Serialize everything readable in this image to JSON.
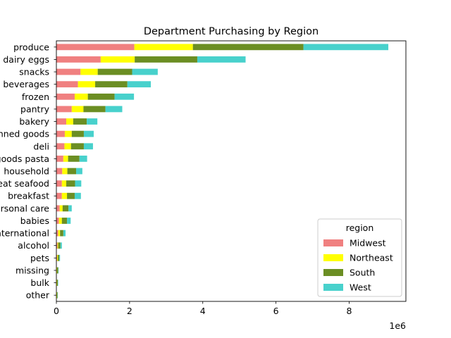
{
  "chart_data": {
    "type": "bar",
    "orientation": "horizontal",
    "stacked": true,
    "title": "Department Purchasing by Region",
    "xlabel": "",
    "ylabel": "",
    "x_scale_label": "1e6",
    "xlim": [
      0,
      9.55
    ],
    "x_ticks": [
      0,
      2,
      4,
      6,
      8
    ],
    "grid": false,
    "legend_title": "region",
    "legend_position": "lower-right",
    "categories": [
      "produce",
      "dairy eggs",
      "snacks",
      "beverages",
      "frozen",
      "pantry",
      "bakery",
      "canned goods",
      "deli",
      "dry goods pasta",
      "household",
      "meat seafood",
      "breakfast",
      "personal care",
      "babies",
      "international",
      "alcohol",
      "pets",
      "missing",
      "bulk",
      "other"
    ],
    "series": [
      {
        "name": "Midwest",
        "color": "#f08080",
        "values": [
          2.13,
          1.21,
          0.66,
          0.59,
          0.5,
          0.42,
          0.27,
          0.23,
          0.22,
          0.19,
          0.16,
          0.15,
          0.15,
          0.09,
          0.07,
          0.05,
          0.03,
          0.02,
          0.01,
          0.01,
          0.01
        ]
      },
      {
        "name": "Northeast",
        "color": "#ffff00",
        "values": [
          1.6,
          0.93,
          0.47,
          0.47,
          0.36,
          0.32,
          0.19,
          0.19,
          0.18,
          0.13,
          0.14,
          0.12,
          0.14,
          0.08,
          0.08,
          0.05,
          0.02,
          0.02,
          0.01,
          0.01,
          0.01
        ]
      },
      {
        "name": "South",
        "color": "#6b8e23",
        "values": [
          3.02,
          1.71,
          0.94,
          0.88,
          0.73,
          0.6,
          0.37,
          0.33,
          0.35,
          0.31,
          0.24,
          0.24,
          0.21,
          0.16,
          0.14,
          0.09,
          0.06,
          0.04,
          0.03,
          0.02,
          0.01
        ]
      },
      {
        "name": "West",
        "color": "#48d1cc",
        "values": [
          2.32,
          1.32,
          0.7,
          0.64,
          0.53,
          0.46,
          0.29,
          0.27,
          0.25,
          0.21,
          0.17,
          0.17,
          0.17,
          0.09,
          0.1,
          0.06,
          0.04,
          0.02,
          0.01,
          0.01,
          0.01
        ]
      }
    ]
  }
}
